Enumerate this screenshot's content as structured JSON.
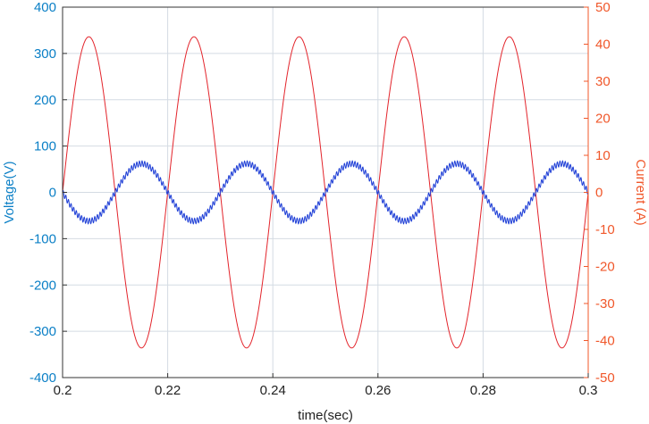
{
  "chart_data": {
    "type": "line",
    "title": "",
    "xlabel": "time(sec)",
    "ylabel_left": "Voltage(V)",
    "ylabel_right": "Current (A)",
    "xlim": [
      0.2,
      0.3
    ],
    "ylim_left": [
      -400,
      400
    ],
    "ylim_right": [
      -50,
      50
    ],
    "x_ticks": [
      "0.2",
      "0.22",
      "0.24",
      "0.26",
      "0.28",
      "0.3"
    ],
    "y_left_ticks": [
      "400",
      "300",
      "200",
      "100",
      "0",
      "-100",
      "-200",
      "-300",
      "-400"
    ],
    "y_right_ticks": [
      "50",
      "40",
      "30",
      "20",
      "10",
      "0",
      "-10",
      "-20",
      "-30",
      "-40",
      "-50"
    ],
    "grid": true,
    "legend": "none",
    "series": [
      {
        "axis": "right",
        "color": "#e3242b",
        "waveform": "sine",
        "amplitude": 42,
        "frequency_hz": 50,
        "phase_deg": 0
      },
      {
        "axis": "left",
        "color": "#1f3fd6",
        "waveform": "sine",
        "amplitude": 62,
        "frequency_hz": 50,
        "phase_deg": 180,
        "ripple_amplitude": 6,
        "ripple_frequency_hz": 2000
      }
    ],
    "colors": {
      "left_axis": "#0a7fc6",
      "right_axis": "#f0572a",
      "grid": "#d4dbe3",
      "frame": "#333333"
    }
  }
}
